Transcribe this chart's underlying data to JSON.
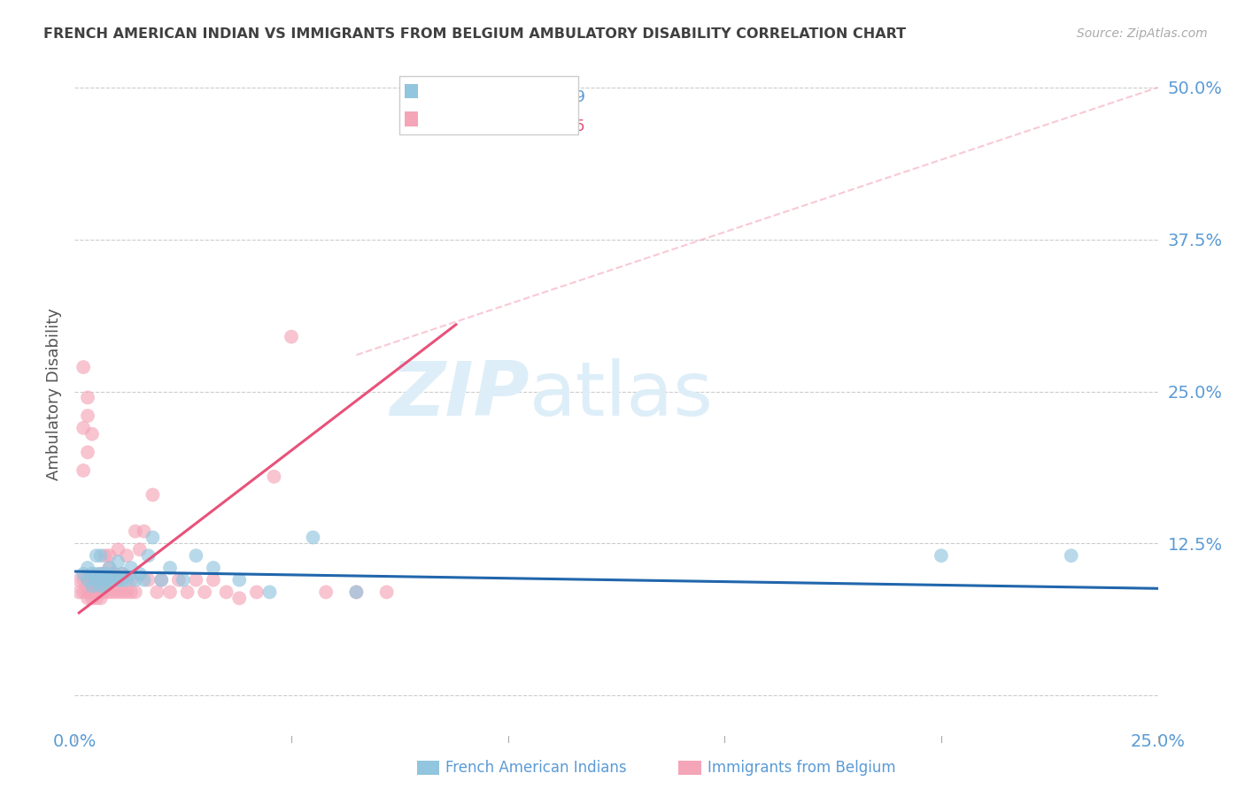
{
  "title": "FRENCH AMERICAN INDIAN VS IMMIGRANTS FROM BELGIUM AMBULATORY DISABILITY CORRELATION CHART",
  "source": "Source: ZipAtlas.com",
  "ylabel": "Ambulatory Disability",
  "legend_label1": "French American Indians",
  "legend_label2": "Immigrants from Belgium",
  "xlim": [
    0.0,
    0.25
  ],
  "ylim": [
    -0.025,
    0.52
  ],
  "yticks": [
    0.0,
    0.125,
    0.25,
    0.375,
    0.5
  ],
  "ytick_labels": [
    "",
    "12.5%",
    "25.0%",
    "37.5%",
    "50.0%"
  ],
  "xticks": [
    0.0,
    0.05,
    0.1,
    0.15,
    0.2,
    0.25
  ],
  "xtick_labels": [
    "0.0%",
    "",
    "",
    "",
    "",
    "25.0%"
  ],
  "color_blue": "#92c5de",
  "color_pink": "#f4a5b8",
  "line_blue": "#2166ac",
  "line_pink": "#e8527a",
  "line_dash": "#f4a5b8",
  "grid_color": "#cccccc",
  "title_color": "#404040",
  "axis_label_color": "#5b9bd5",
  "watermark_color": "#ddeef8",
  "blue_scatter_x": [
    0.002,
    0.003,
    0.003,
    0.004,
    0.004,
    0.005,
    0.005,
    0.005,
    0.006,
    0.006,
    0.006,
    0.007,
    0.007,
    0.007,
    0.008,
    0.008,
    0.009,
    0.009,
    0.01,
    0.01,
    0.011,
    0.011,
    0.012,
    0.013,
    0.014,
    0.015,
    0.016,
    0.017,
    0.018,
    0.02,
    0.022,
    0.025,
    0.028,
    0.032,
    0.038,
    0.045,
    0.055,
    0.065,
    0.2,
    0.23
  ],
  "blue_scatter_y": [
    0.1,
    0.095,
    0.105,
    0.1,
    0.09,
    0.095,
    0.1,
    0.115,
    0.09,
    0.1,
    0.115,
    0.095,
    0.1,
    0.09,
    0.095,
    0.105,
    0.095,
    0.1,
    0.095,
    0.11,
    0.095,
    0.1,
    0.095,
    0.105,
    0.095,
    0.1,
    0.095,
    0.115,
    0.13,
    0.095,
    0.105,
    0.095,
    0.115,
    0.105,
    0.095,
    0.085,
    0.13,
    0.085,
    0.115,
    0.115
  ],
  "pink_scatter_x": [
    0.001,
    0.001,
    0.002,
    0.002,
    0.002,
    0.002,
    0.003,
    0.003,
    0.003,
    0.003,
    0.004,
    0.004,
    0.004,
    0.004,
    0.005,
    0.005,
    0.005,
    0.005,
    0.006,
    0.006,
    0.006,
    0.006,
    0.007,
    0.007,
    0.007,
    0.008,
    0.008,
    0.008,
    0.009,
    0.009,
    0.01,
    0.01,
    0.01,
    0.011,
    0.011,
    0.012,
    0.012,
    0.013,
    0.013,
    0.014,
    0.014,
    0.015,
    0.016,
    0.017,
    0.018,
    0.019,
    0.02,
    0.022,
    0.024,
    0.026,
    0.028,
    0.03,
    0.032,
    0.035,
    0.038,
    0.042,
    0.046,
    0.05,
    0.058,
    0.065,
    0.072,
    0.002,
    0.003,
    0.003,
    0.004
  ],
  "pink_scatter_y": [
    0.095,
    0.085,
    0.22,
    0.185,
    0.095,
    0.085,
    0.2,
    0.095,
    0.085,
    0.08,
    0.095,
    0.09,
    0.085,
    0.08,
    0.095,
    0.09,
    0.085,
    0.08,
    0.1,
    0.095,
    0.085,
    0.08,
    0.115,
    0.095,
    0.085,
    0.115,
    0.105,
    0.085,
    0.1,
    0.085,
    0.12,
    0.095,
    0.085,
    0.1,
    0.085,
    0.115,
    0.085,
    0.095,
    0.085,
    0.135,
    0.085,
    0.12,
    0.135,
    0.095,
    0.165,
    0.085,
    0.095,
    0.085,
    0.095,
    0.085,
    0.095,
    0.085,
    0.095,
    0.085,
    0.08,
    0.085,
    0.18,
    0.295,
    0.085,
    0.085,
    0.085,
    0.27,
    0.245,
    0.23,
    0.215
  ],
  "blue_line_x": [
    0.0,
    0.25
  ],
  "blue_line_y": [
    0.102,
    0.088
  ],
  "pink_line_x": [
    0.001,
    0.088
  ],
  "pink_line_y": [
    0.068,
    0.305
  ],
  "dash_line_x": [
    0.065,
    0.25
  ],
  "dash_line_y": [
    0.28,
    0.5
  ]
}
